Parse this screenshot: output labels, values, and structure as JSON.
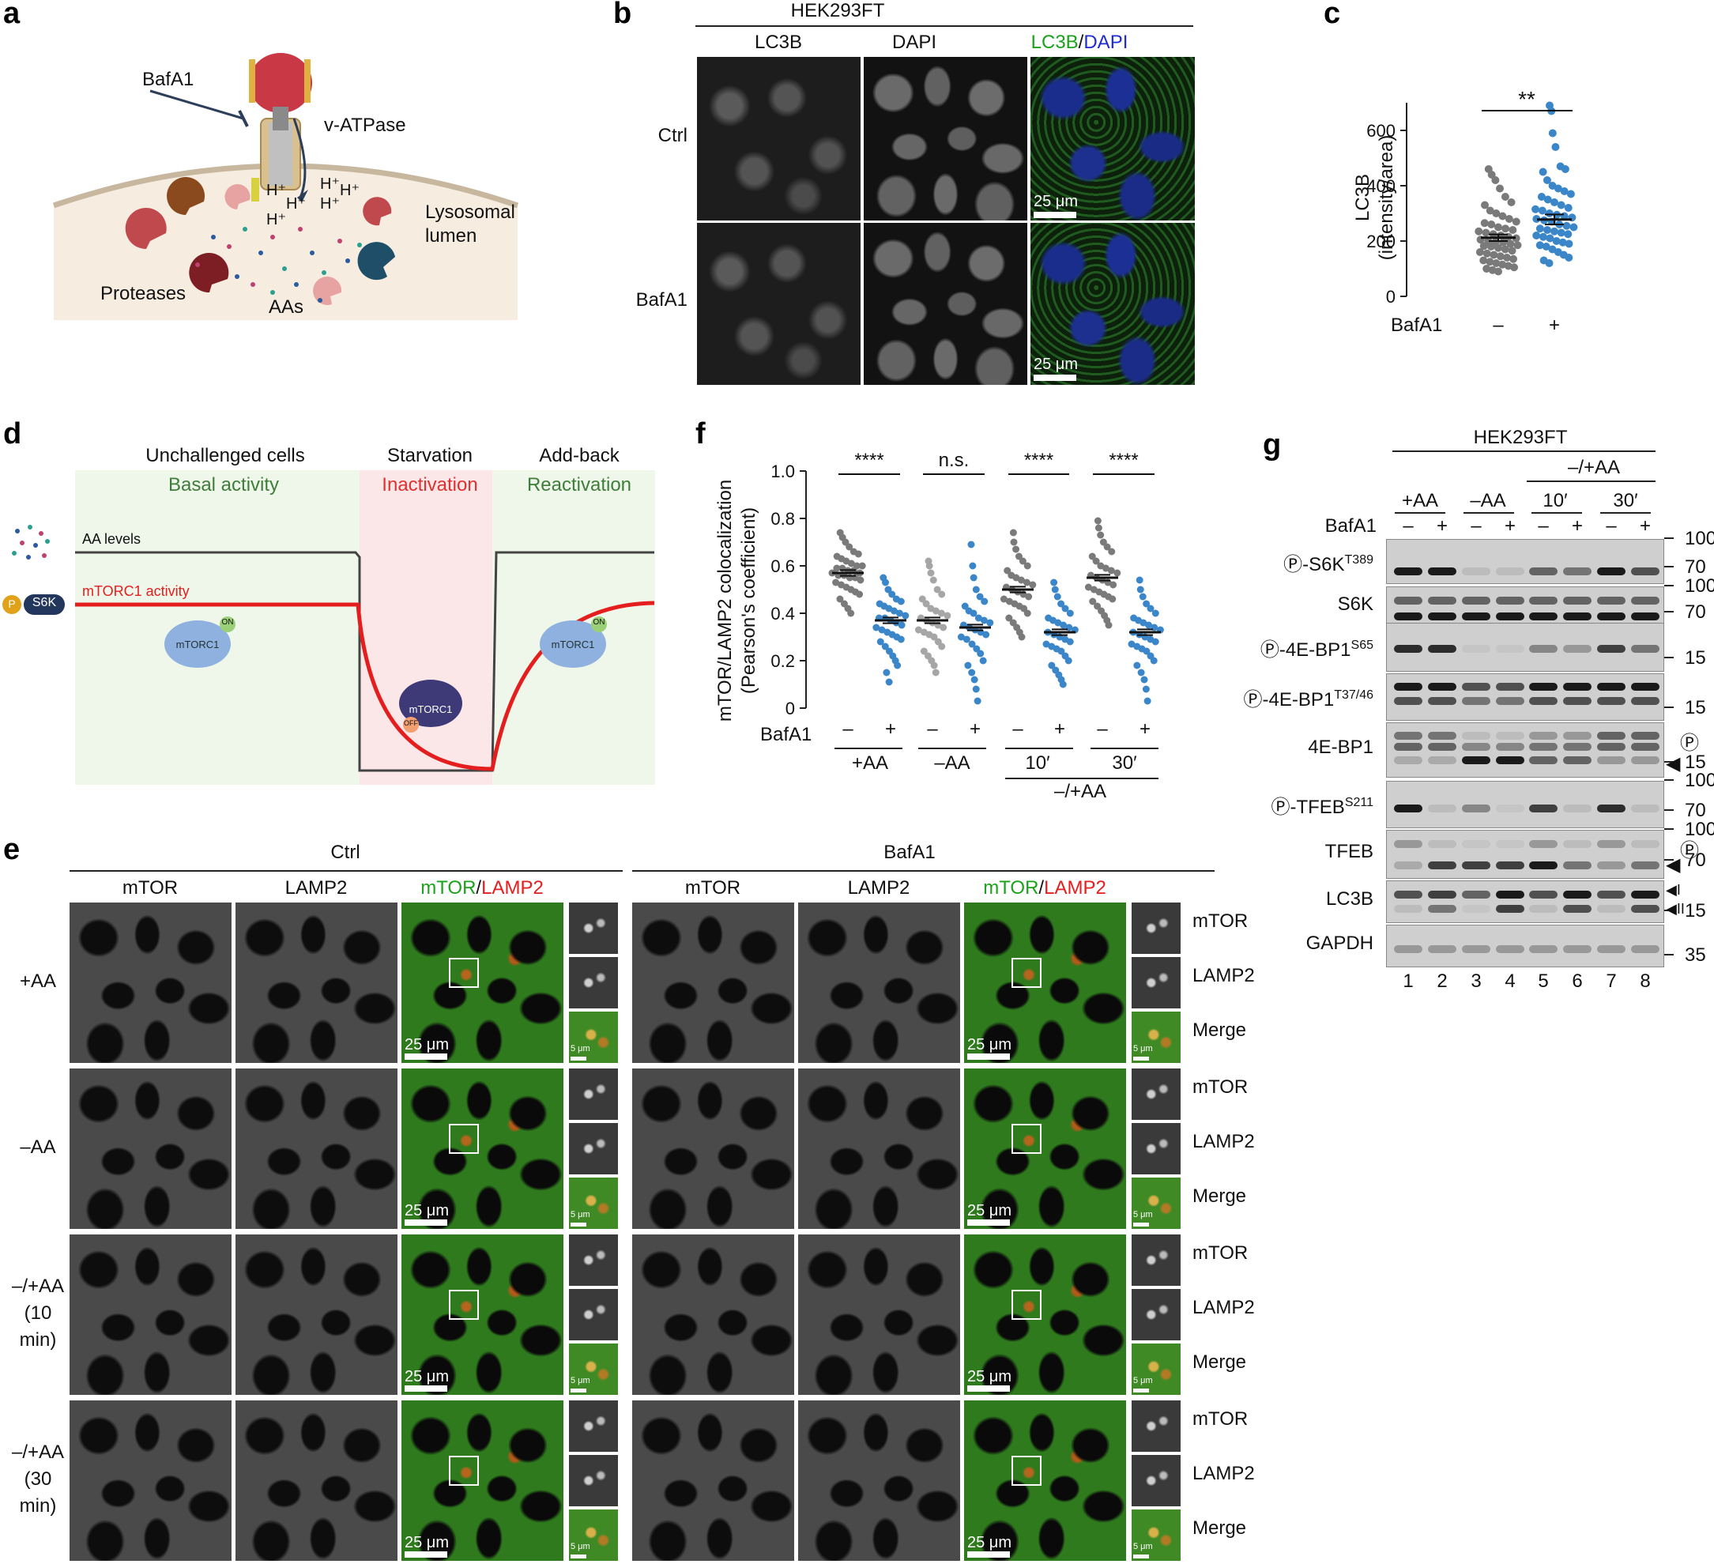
{
  "panels": {
    "a": "a",
    "b": "b",
    "c": "c",
    "d": "d",
    "e": "e",
    "f": "f",
    "g": "g"
  },
  "panel_a": {
    "bafa1": "BafA1",
    "vatpase": "v-ATPase",
    "h1": "H⁺",
    "h2": "H⁺",
    "h3": "H⁺",
    "h4": "H⁺",
    "h5": "H⁺",
    "h6": "H⁺",
    "lysosomal1": "Lysosomal",
    "lysosomal2": "lumen",
    "proteases": "Proteases",
    "aas": "AAs",
    "colors": {
      "lumen": "#f6ece0",
      "protease_red": "#c0494e",
      "protease_brown": "#8a4a1d",
      "protease_pink": "#e6a3a1",
      "protease_navy": "#1e4e68"
    }
  },
  "panel_b": {
    "cell_line": "HEK293FT",
    "col1": "LC3B",
    "col2": "DAPI",
    "col3a": "LC3B",
    "slash": "/",
    "col3b": "DAPI",
    "row1": "Ctrl",
    "row2": "BafA1",
    "scale": "25 μm",
    "colors": {
      "lc3b": "#1aa31a",
      "dapi": "#1e2bd6"
    }
  },
  "panel_c": {
    "ylabel1": "LC3B",
    "ylabel2": "(intensity/area)",
    "yticks": [
      "0",
      "200",
      "400",
      "600"
    ],
    "xlabel": "BafA1",
    "cat1": "–",
    "cat2": "+",
    "sig": "**"
  },
  "panel_d": {
    "h1": "Unchallenged cells",
    "h2": "Starvation",
    "h3": "Add-back",
    "s1": "Basal activity",
    "s2": "Inactivation",
    "s3": "Reactivation",
    "aa_levels": "AA levels",
    "mtorc1_activity": "mTORC1 activity",
    "p": "P",
    "s6k": "S6K",
    "mtorc1": "mTORC1",
    "on": "ON",
    "off": "OFF",
    "colors": {
      "green_bg": "#eef7ea",
      "pink_bg": "#fbe7e7",
      "activity": "#e41e1e",
      "basal": "#3f7d3a",
      "inact": "#e03030"
    }
  },
  "panel_e": {
    "ctrl": "Ctrl",
    "bafa1": "BafA1",
    "col_mtor": "mTOR",
    "col_lamp2": "LAMP2",
    "merge_a": "mTOR",
    "merge_slash": "/",
    "merge_b": "LAMP2",
    "rows": [
      "+AA",
      "–AA",
      "–/+AA\n(10\nmin)",
      "–/+AA\n(30\nmin)"
    ],
    "right_labels": [
      "mTOR",
      "LAMP2",
      "Merge"
    ],
    "scale_big": "25 μm",
    "scale_small": "5 μm"
  },
  "panel_f": {
    "ylabel1": "mTOR/LAMP2 colocalization",
    "ylabel2": "(Pearson's coefficient)",
    "yticks": [
      "0",
      "0.2",
      "0.4",
      "0.6",
      "0.8",
      "1.0"
    ],
    "bafa1": "BafA1",
    "minus": "–",
    "plus": "+",
    "groups": [
      "+AA",
      "–AA",
      "10′",
      "30′"
    ],
    "group_bottom": "–/+AA",
    "sig": [
      "****",
      "n.s.",
      "****",
      "****"
    ]
  },
  "panel_g": {
    "cell_line": "HEK293FT",
    "aa_top": "–/+AA",
    "aa": [
      "+AA",
      "–AA",
      "10′",
      "30′"
    ],
    "bafa1": "BafA1",
    "signs": [
      "–",
      "+",
      "–",
      "+",
      "–",
      "+",
      "–",
      "+"
    ],
    "rows": [
      {
        "label": "Ⓟ-S6K",
        "sup": "T389",
        "mw": [
          "100",
          "70"
        ]
      },
      {
        "label": "S6K",
        "sup": "",
        "mw": [
          "100",
          "70"
        ]
      },
      {
        "label": "Ⓟ-4E-BP1",
        "sup": "S65",
        "mw": [
          "15"
        ]
      },
      {
        "label": "Ⓟ-4E-BP1",
        "sup": "T37/46",
        "mw": [
          "15"
        ]
      },
      {
        "label": "4E-BP1",
        "sup": "",
        "mw": [
          "15"
        ]
      },
      {
        "label": "Ⓟ-TFEB",
        "sup": "S211",
        "mw": [
          "100",
          "70"
        ]
      },
      {
        "label": "TFEB",
        "sup": "",
        "mw": [
          "100",
          "70"
        ]
      },
      {
        "label": "LC3B",
        "sup": "",
        "mw": [
          "15"
        ]
      },
      {
        "label": "GAPDH",
        "sup": "",
        "mw": [
          "35"
        ]
      }
    ],
    "p_mark": "Ⓟ",
    "lc3_i": "I",
    "lc3_ii": "II",
    "lanes": [
      "1",
      "2",
      "3",
      "4",
      "5",
      "6",
      "7",
      "8"
    ]
  },
  "chart_data": [
    {
      "type": "scatter",
      "title": "",
      "xlabel": "BafA1",
      "ylabel": "LC3B (intensity/area)",
      "ylim": [
        0,
        700
      ],
      "categories": [
        "–",
        "+"
      ],
      "series": [
        {
          "name": "–",
          "mean": 212,
          "sem": 12,
          "color": "#7a7a7a",
          "values": [
            460,
            440,
            420,
            390,
            360,
            340,
            330,
            310,
            300,
            290,
            280,
            270,
            265,
            260,
            250,
            245,
            240,
            235,
            230,
            225,
            220,
            215,
            210,
            205,
            200,
            198,
            195,
            190,
            185,
            182,
            180,
            175,
            170,
            165,
            160,
            155,
            150,
            145,
            140,
            135,
            130,
            125,
            120,
            115,
            110,
            105,
            100,
            95,
            90
          ]
        },
        {
          "name": "+",
          "mean": 278,
          "sem": 18,
          "color": "#3a86c8",
          "values": [
            690,
            670,
            590,
            540,
            470,
            460,
            450,
            420,
            400,
            390,
            380,
            370,
            360,
            350,
            340,
            330,
            320,
            315,
            310,
            300,
            295,
            290,
            285,
            280,
            275,
            270,
            260,
            255,
            250,
            245,
            240,
            235,
            230,
            225,
            220,
            215,
            210,
            200,
            195,
            190,
            185,
            180,
            170,
            160,
            150,
            140,
            130,
            120
          ]
        }
      ],
      "significance": "**"
    },
    {
      "type": "scatter",
      "title": "",
      "xlabel": "BafA1",
      "ylabel": "mTOR/LAMP2 colocalization (Pearson's coefficient)",
      "ylim": [
        0,
        1.0
      ],
      "categories": [
        "+AA –",
        "+AA +",
        "–AA –",
        "–AA +",
        "10′ –",
        "10′ +",
        "30′ –",
        "30′ +"
      ],
      "series": [
        {
          "name": "+AA –",
          "mean": 0.57,
          "color": "#7a7a7a",
          "values": [
            0.74,
            0.72,
            0.7,
            0.68,
            0.66,
            0.65,
            0.64,
            0.63,
            0.62,
            0.61,
            0.6,
            0.6,
            0.59,
            0.59,
            0.58,
            0.58,
            0.57,
            0.57,
            0.56,
            0.56,
            0.55,
            0.55,
            0.54,
            0.53,
            0.52,
            0.51,
            0.5,
            0.49,
            0.48,
            0.46,
            0.44,
            0.42,
            0.4
          ]
        },
        {
          "name": "+AA +",
          "mean": 0.37,
          "color": "#3a86c8",
          "values": [
            0.55,
            0.53,
            0.5,
            0.48,
            0.46,
            0.45,
            0.44,
            0.43,
            0.42,
            0.41,
            0.4,
            0.39,
            0.38,
            0.38,
            0.37,
            0.36,
            0.35,
            0.34,
            0.33,
            0.32,
            0.31,
            0.3,
            0.29,
            0.28,
            0.26,
            0.24,
            0.22,
            0.2,
            0.18,
            0.15,
            0.11
          ]
        },
        {
          "name": "–AA –",
          "mean": 0.37,
          "color": "#a6a6a6",
          "values": [
            0.62,
            0.6,
            0.57,
            0.54,
            0.5,
            0.48,
            0.46,
            0.44,
            0.42,
            0.41,
            0.4,
            0.39,
            0.38,
            0.37,
            0.36,
            0.35,
            0.34,
            0.33,
            0.32,
            0.31,
            0.3,
            0.28,
            0.26,
            0.24,
            0.22,
            0.2,
            0.18,
            0.15
          ]
        },
        {
          "name": "–AA +",
          "mean": 0.34,
          "color": "#3a86c8",
          "values": [
            0.69,
            0.6,
            0.55,
            0.5,
            0.47,
            0.45,
            0.43,
            0.41,
            0.4,
            0.38,
            0.37,
            0.36,
            0.35,
            0.34,
            0.33,
            0.32,
            0.31,
            0.3,
            0.29,
            0.27,
            0.25,
            0.23,
            0.2,
            0.18,
            0.15,
            0.12,
            0.08,
            0.03
          ]
        },
        {
          "name": "10′ –",
          "mean": 0.5,
          "color": "#7a7a7a",
          "values": [
            0.74,
            0.7,
            0.67,
            0.64,
            0.62,
            0.6,
            0.58,
            0.56,
            0.55,
            0.54,
            0.53,
            0.52,
            0.51,
            0.5,
            0.49,
            0.48,
            0.47,
            0.46,
            0.45,
            0.44,
            0.43,
            0.42,
            0.4,
            0.38,
            0.36,
            0.34,
            0.32,
            0.3
          ]
        },
        {
          "name": "10′ +",
          "mean": 0.32,
          "color": "#3a86c8",
          "values": [
            0.53,
            0.5,
            0.47,
            0.44,
            0.42,
            0.4,
            0.38,
            0.37,
            0.36,
            0.35,
            0.34,
            0.33,
            0.32,
            0.31,
            0.3,
            0.29,
            0.28,
            0.27,
            0.26,
            0.25,
            0.24,
            0.22,
            0.2,
            0.18,
            0.16,
            0.14,
            0.12,
            0.1
          ]
        },
        {
          "name": "30′ –",
          "mean": 0.55,
          "color": "#7a7a7a",
          "values": [
            0.79,
            0.76,
            0.73,
            0.7,
            0.68,
            0.66,
            0.64,
            0.62,
            0.6,
            0.59,
            0.58,
            0.57,
            0.56,
            0.55,
            0.54,
            0.53,
            0.52,
            0.51,
            0.5,
            0.49,
            0.48,
            0.47,
            0.46,
            0.45,
            0.43,
            0.41,
            0.39,
            0.37,
            0.35
          ]
        },
        {
          "name": "30′ +",
          "mean": 0.32,
          "color": "#3a86c8",
          "values": [
            0.54,
            0.5,
            0.47,
            0.44,
            0.42,
            0.4,
            0.38,
            0.37,
            0.36,
            0.35,
            0.34,
            0.33,
            0.32,
            0.31,
            0.3,
            0.29,
            0.28,
            0.27,
            0.26,
            0.25,
            0.24,
            0.22,
            0.2,
            0.18,
            0.15,
            0.12,
            0.08,
            0.03
          ]
        }
      ],
      "significance": [
        "****",
        "n.s.",
        "****",
        "****"
      ]
    }
  ]
}
